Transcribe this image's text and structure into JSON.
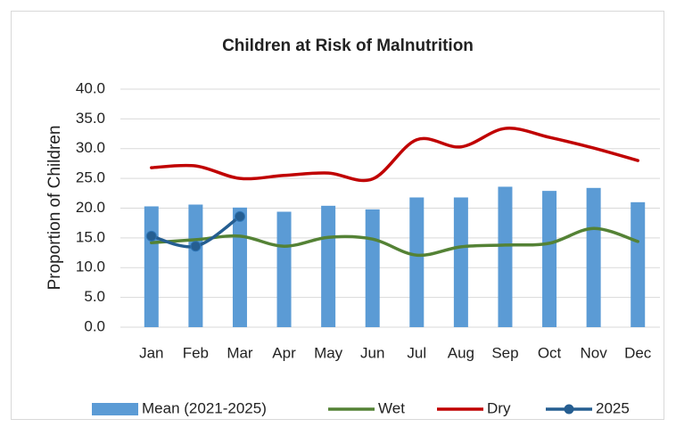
{
  "chart_data": {
    "type": "bar",
    "title": "Children at Risk of Malnutrition",
    "y_label": "Proportion of Children",
    "categories": [
      "Jan",
      "Feb",
      "Mar",
      "Apr",
      "May",
      "Jun",
      "Jul",
      "Aug",
      "Sep",
      "Oct",
      "Nov",
      "Dec"
    ],
    "series": [
      {
        "name": "Mean (2021-2025)",
        "type": "bar",
        "color": "#5b9bd5",
        "values": [
          20.3,
          20.6,
          20.1,
          19.4,
          20.4,
          19.8,
          21.8,
          21.8,
          23.6,
          22.9,
          23.4,
          21.0
        ]
      },
      {
        "name": "Wet",
        "type": "line",
        "color": "#548235",
        "values": [
          14.2,
          14.7,
          15.3,
          13.6,
          15.1,
          14.8,
          12.1,
          13.5,
          13.8,
          14.1,
          16.6,
          14.4
        ]
      },
      {
        "name": "Dry",
        "type": "line",
        "color": "#c00000",
        "values": [
          26.8,
          27.1,
          25.0,
          25.5,
          25.9,
          24.9,
          31.5,
          30.3,
          33.4,
          31.9,
          30.1,
          28.0
        ]
      },
      {
        "name": "2025",
        "type": "line",
        "marker": true,
        "color": "#255e91",
        "values": [
          15.3,
          13.6,
          18.6,
          null,
          null,
          null,
          null,
          null,
          null,
          null,
          null,
          null
        ]
      }
    ],
    "ylim": [
      0,
      40
    ],
    "yticks": [
      {
        "value": 0,
        "label": "0.0"
      },
      {
        "value": 5,
        "label": "5.0"
      },
      {
        "value": 10,
        "label": "10.0"
      },
      {
        "value": 15,
        "label": "15.0"
      },
      {
        "value": 20,
        "label": "20.0"
      },
      {
        "value": 25,
        "label": "25.0"
      },
      {
        "value": 30,
        "label": "30.0"
      },
      {
        "value": 35,
        "label": "35.0"
      },
      {
        "value": 40,
        "label": "40.0"
      }
    ],
    "grid": true,
    "legend": "bottom"
  }
}
